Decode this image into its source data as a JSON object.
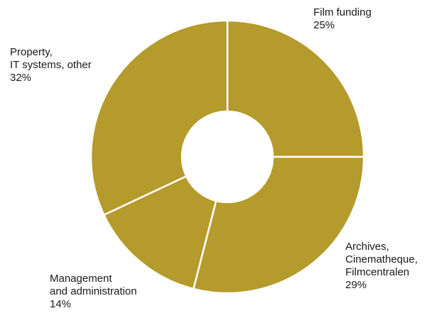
{
  "chart_data": {
    "type": "pie",
    "variant": "donut",
    "title": "",
    "categories": [
      "Film funding",
      "Archives, Cinematheque, Filmcentralen",
      "Management and administration",
      "Property, IT systems, other"
    ],
    "values": [
      25,
      29,
      14,
      32
    ],
    "unit": "%",
    "slices": [
      {
        "label_lines": [
          "Film funding"
        ],
        "value_text": "25%",
        "value": 25
      },
      {
        "label_lines": [
          "Archives,",
          "Cinematheque,",
          "Filmcentralen"
        ],
        "value_text": "29%",
        "value": 29
      },
      {
        "label_lines": [
          "Management",
          "and administration"
        ],
        "value_text": "14%",
        "value": 14
      },
      {
        "label_lines": [
          "Property,",
          "IT systems, other"
        ],
        "value_text": "32%",
        "value": 32
      }
    ],
    "colors": {
      "slice_fill": "#b59a2c",
      "separator": "#ffffff",
      "label_text": "#1a1a1a"
    },
    "legend": "none"
  }
}
